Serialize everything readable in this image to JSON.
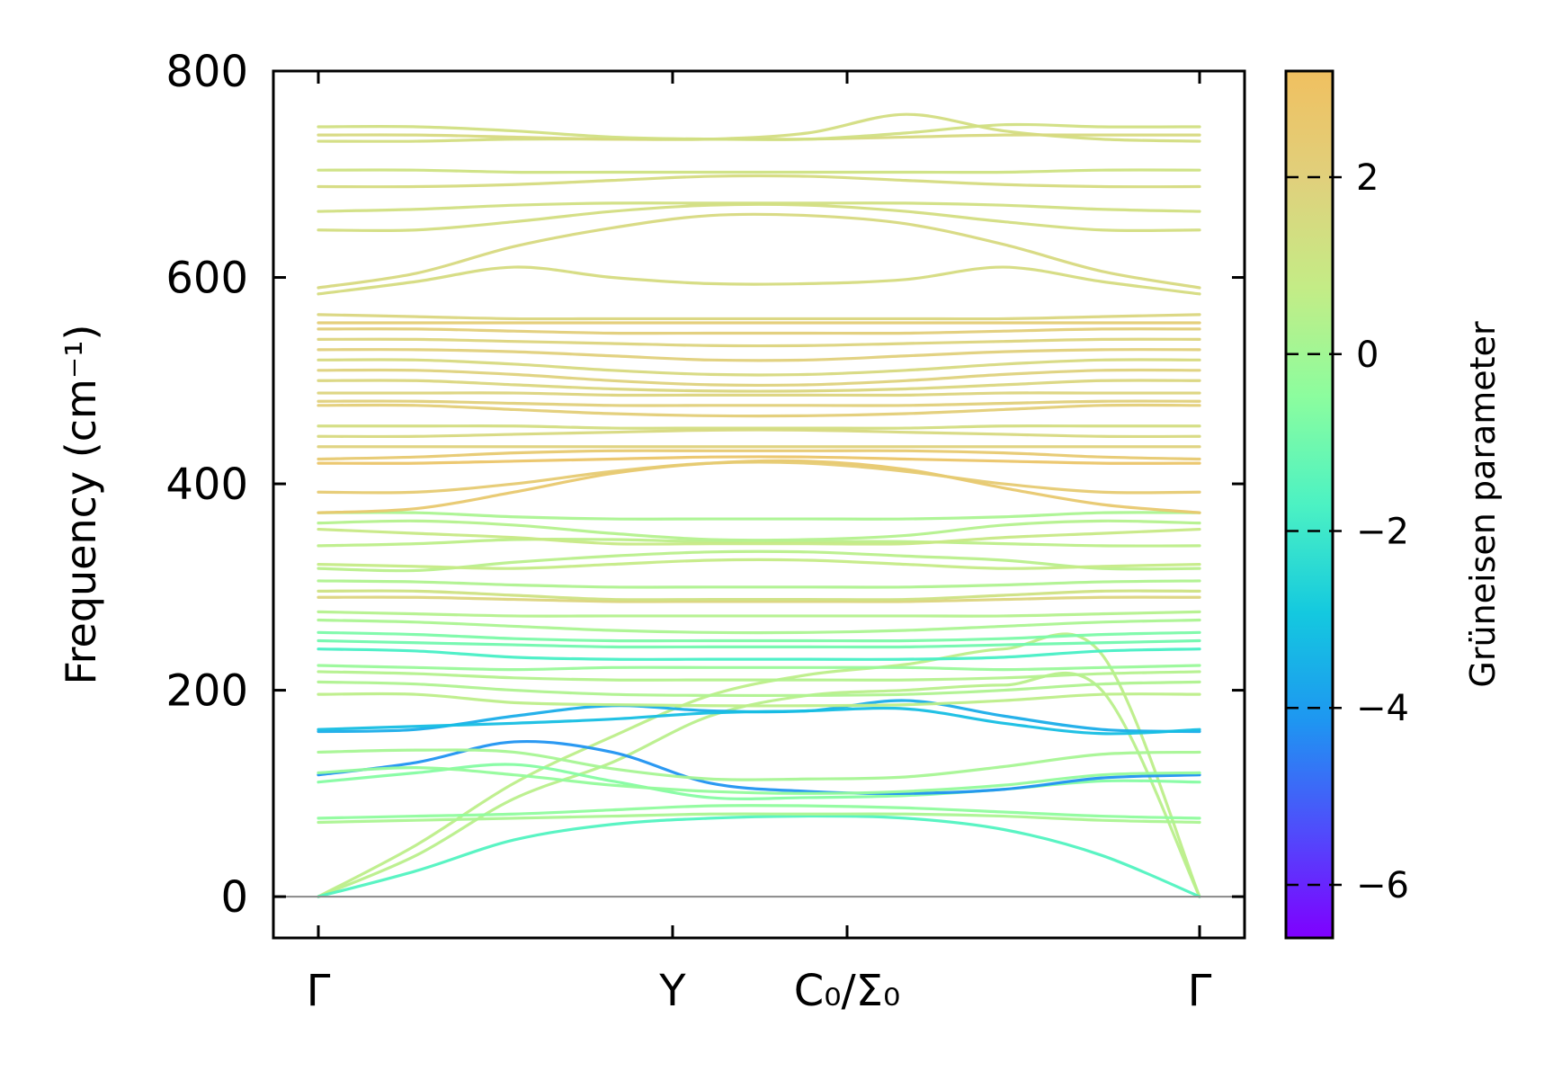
{
  "chart_data": {
    "type": "line",
    "title": "",
    "xlabel": "",
    "ylabel": "Frequency (cm⁻¹)",
    "ylim": [
      -40,
      800
    ],
    "x_domain": [
      0,
      1
    ],
    "x_ticks": [
      {
        "x": 0.0,
        "label": "Γ"
      },
      {
        "x": 0.402,
        "label": "Y"
      },
      {
        "x": 0.6,
        "label": "C₀/Σ₀"
      },
      {
        "x": 1.0,
        "label": "Γ"
      }
    ],
    "y_ticks": [
      0,
      200,
      400,
      600,
      800
    ],
    "zero_line": 0,
    "grid": false,
    "colorbar": {
      "label": "Grüneisen parameter",
      "range": [
        -6.6,
        3.2
      ],
      "ticks": [
        {
          "value": 2,
          "label": "2"
        },
        {
          "value": 0,
          "label": "0"
        },
        {
          "value": -2,
          "label": "−2"
        },
        {
          "value": -4,
          "label": "−4"
        },
        {
          "value": -6,
          "label": "−6"
        }
      ],
      "colormap": [
        "#7f00ff",
        "#4f4dfb",
        "#1e96f1",
        "#14c9df",
        "#4cf2c3",
        "#8cfd9e",
        "#c4ec86",
        "#e0d07c",
        "#f0c060"
      ]
    },
    "bands": [
      {
        "freq": [
          0,
          50,
          110,
          155,
          195,
          215,
          225,
          240,
          235,
          0
        ],
        "gruneisen": 0.6
      },
      {
        "freq": [
          0,
          40,
          95,
          130,
          175,
          195,
          200,
          205,
          200,
          0
        ],
        "gruneisen": 0.5
      },
      {
        "freq": [
          0,
          25,
          55,
          70,
          76,
          78,
          76,
          65,
          40,
          0
        ],
        "gruneisen": -1.6
      },
      {
        "freq": [
          72,
          74,
          76,
          78,
          80,
          80,
          80,
          78,
          74,
          72
        ],
        "gruneisen": 0.2
      },
      {
        "freq": [
          76,
          78,
          80,
          84,
          88,
          88,
          86,
          82,
          78,
          76
        ],
        "gruneisen": -0.4
      },
      {
        "freq": [
          111,
          120,
          128,
          112,
          96,
          96,
          98,
          104,
          112,
          111
        ],
        "gruneisen": -0.6
      },
      {
        "freq": [
          118,
          130,
          150,
          140,
          110,
          102,
          100,
          104,
          115,
          118
        ],
        "gruneisen": -4.2
      },
      {
        "freq": [
          120,
          125,
          118,
          108,
          102,
          100,
          102,
          108,
          118,
          120
        ],
        "gruneisen": -0.3
      },
      {
        "freq": [
          140,
          142,
          140,
          124,
          114,
          114,
          116,
          126,
          138,
          140
        ],
        "gruneisen": 0.1
      },
      {
        "freq": [
          160,
          162,
          175,
          185,
          180,
          180,
          190,
          175,
          162,
          160
        ],
        "gruneisen": -3.6
      },
      {
        "freq": [
          162,
          165,
          168,
          172,
          178,
          180,
          182,
          168,
          158,
          162
        ],
        "gruneisen": -3.2
      },
      {
        "freq": [
          196,
          196,
          188,
          186,
          185,
          185,
          186,
          190,
          196,
          196
        ],
        "gruneisen": 0.6
      },
      {
        "freq": [
          208,
          206,
          200,
          196,
          195,
          195,
          196,
          200,
          206,
          208
        ],
        "gruneisen": 0.3
      },
      {
        "freq": [
          218,
          216,
          212,
          210,
          210,
          210,
          210,
          212,
          216,
          218
        ],
        "gruneisen": 0.4
      },
      {
        "freq": [
          224,
          222,
          220,
          222,
          222,
          222,
          222,
          220,
          222,
          224
        ],
        "gruneisen": -0.2
      },
      {
        "freq": [
          240,
          238,
          232,
          230,
          230,
          230,
          230,
          232,
          238,
          240
        ],
        "gruneisen": -1.8
      },
      {
        "freq": [
          248,
          246,
          244,
          242,
          242,
          242,
          242,
          244,
          246,
          248
        ],
        "gruneisen": -1.0
      },
      {
        "freq": [
          256,
          254,
          250,
          248,
          248,
          248,
          248,
          250,
          254,
          256
        ],
        "gruneisen": -0.8
      },
      {
        "freq": [
          268,
          266,
          262,
          258,
          256,
          256,
          258,
          262,
          266,
          268
        ],
        "gruneisen": 0.2
      },
      {
        "freq": [
          276,
          274,
          272,
          272,
          272,
          272,
          272,
          272,
          274,
          276
        ],
        "gruneisen": 0.4
      },
      {
        "freq": [
          290,
          290,
          288,
          286,
          286,
          286,
          286,
          288,
          290,
          290
        ],
        "gruneisen": 1.8
      },
      {
        "freq": [
          296,
          296,
          292,
          288,
          288,
          288,
          288,
          292,
          296,
          296
        ],
        "gruneisen": 1.2
      },
      {
        "freq": [
          306,
          305,
          302,
          300,
          300,
          300,
          300,
          302,
          305,
          306
        ],
        "gruneisen": 0.3
      },
      {
        "freq": [
          318,
          316,
          324,
          330,
          334,
          334,
          330,
          326,
          318,
          318
        ],
        "gruneisen": 0.5
      },
      {
        "freq": [
          322,
          320,
          318,
          322,
          326,
          326,
          322,
          318,
          320,
          322
        ],
        "gruneisen": 0.8
      },
      {
        "freq": [
          340,
          342,
          346,
          346,
          344,
          344,
          344,
          342,
          340,
          340
        ],
        "gruneisen": 0.6
      },
      {
        "freq": [
          356,
          352,
          348,
          342,
          342,
          342,
          342,
          348,
          352,
          356
        ],
        "gruneisen": 0.9
      },
      {
        "freq": [
          362,
          364,
          360,
          352,
          346,
          346,
          350,
          360,
          364,
          362
        ],
        "gruneisen": 0.4
      },
      {
        "freq": [
          372,
          372,
          368,
          366,
          366,
          366,
          366,
          368,
          372,
          372
        ],
        "gruneisen": 0.2
      },
      {
        "freq": [
          372,
          376,
          392,
          410,
          420,
          422,
          414,
          396,
          380,
          372
        ],
        "gruneisen": 2.6
      },
      {
        "freq": [
          392,
          392,
          400,
          412,
          420,
          420,
          412,
          400,
          392,
          392
        ],
        "gruneisen": 2.4
      },
      {
        "freq": [
          420,
          420,
          422,
          424,
          426,
          426,
          424,
          422,
          420,
          420
        ],
        "gruneisen": 2.8
      },
      {
        "freq": [
          424,
          426,
          430,
          432,
          432,
          432,
          432,
          430,
          426,
          424
        ],
        "gruneisen": 2.5
      },
      {
        "freq": [
          436,
          436,
          436,
          436,
          436,
          436,
          436,
          436,
          436,
          436
        ],
        "gruneisen": 1.9
      },
      {
        "freq": [
          446,
          446,
          448,
          450,
          452,
          452,
          450,
          448,
          446,
          446
        ],
        "gruneisen": 1.6
      },
      {
        "freq": [
          456,
          456,
          456,
          454,
          454,
          454,
          454,
          456,
          456,
          456
        ],
        "gruneisen": 1.4
      },
      {
        "freq": [
          476,
          476,
          472,
          468,
          466,
          466,
          468,
          472,
          476,
          476
        ],
        "gruneisen": 2.2
      },
      {
        "freq": [
          480,
          480,
          478,
          476,
          476,
          476,
          476,
          478,
          480,
          480
        ],
        "gruneisen": 2.0
      },
      {
        "freq": [
          488,
          488,
          488,
          486,
          486,
          486,
          486,
          488,
          488,
          488
        ],
        "gruneisen": 1.8
      },
      {
        "freq": [
          500,
          500,
          496,
          492,
          490,
          490,
          492,
          496,
          500,
          500
        ],
        "gruneisen": 1.7
      },
      {
        "freq": [
          510,
          510,
          506,
          500,
          496,
          496,
          500,
          506,
          510,
          510
        ],
        "gruneisen": 1.9
      },
      {
        "freq": [
          520,
          520,
          516,
          510,
          506,
          506,
          510,
          516,
          520,
          520
        ],
        "gruneisen": 1.6
      },
      {
        "freq": [
          530,
          530,
          528,
          524,
          520,
          520,
          524,
          528,
          530,
          530
        ],
        "gruneisen": 2.0
      },
      {
        "freq": [
          540,
          540,
          538,
          536,
          534,
          534,
          536,
          538,
          540,
          540
        ],
        "gruneisen": 1.8
      },
      {
        "freq": [
          550,
          550,
          548,
          546,
          546,
          546,
          546,
          548,
          550,
          550
        ],
        "gruneisen": 2.1
      },
      {
        "freq": [
          556,
          556,
          556,
          556,
          556,
          556,
          556,
          556,
          556,
          556
        ],
        "gruneisen": 2.3
      },
      {
        "freq": [
          564,
          562,
          560,
          560,
          560,
          560,
          560,
          560,
          562,
          564
        ],
        "gruneisen": 1.7
      },
      {
        "freq": [
          584,
          596,
          610,
          600,
          594,
          594,
          598,
          610,
          596,
          584
        ],
        "gruneisen": 1.5
      },
      {
        "freq": [
          590,
          604,
          630,
          648,
          660,
          660,
          652,
          632,
          606,
          590
        ],
        "gruneisen": 1.6
      },
      {
        "freq": [
          646,
          646,
          654,
          664,
          670,
          670,
          664,
          654,
          646,
          646
        ],
        "gruneisen": 1.4
      },
      {
        "freq": [
          664,
          666,
          670,
          672,
          672,
          672,
          672,
          670,
          666,
          664
        ],
        "gruneisen": 1.3
      },
      {
        "freq": [
          688,
          688,
          690,
          694,
          698,
          698,
          694,
          690,
          688,
          688
        ],
        "gruneisen": 1.5
      },
      {
        "freq": [
          704,
          704,
          702,
          702,
          702,
          702,
          702,
          702,
          704,
          704
        ],
        "gruneisen": 1.2
      },
      {
        "freq": [
          732,
          732,
          734,
          734,
          734,
          740,
          758,
          742,
          734,
          732
        ],
        "gruneisen": 1.4
      },
      {
        "freq": [
          738,
          738,
          736,
          734,
          734,
          734,
          736,
          738,
          738,
          738
        ],
        "gruneisen": 1.6
      },
      {
        "freq": [
          746,
          746,
          742,
          736,
          734,
          734,
          740,
          748,
          746,
          746
        ],
        "gruneisen": 1.3
      }
    ]
  }
}
